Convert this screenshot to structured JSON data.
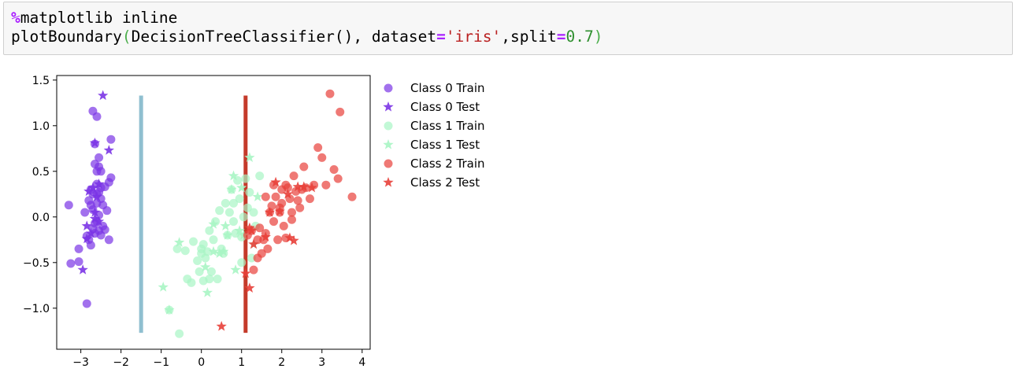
{
  "code": {
    "magic_pct": "%",
    "magic_rest": "matplotlib inline",
    "func": "plotBoundary",
    "open_paren": "(",
    "arg1": "DecisionTreeClassifier(), dataset",
    "eq1": "=",
    "str1": "'iris'",
    "arg2": ",split",
    "eq2": "=",
    "num1": "0.7",
    "close_paren": ")"
  },
  "colors": {
    "class0": "#7b34e6",
    "class1": "#a8f5c4",
    "class2": "#e8403a",
    "boundary_blue": "#8fbfd0",
    "boundary_red": "#c43a2a"
  },
  "chart_data": {
    "type": "scatter",
    "xlim": [
      -3.6,
      4.2
    ],
    "ylim": [
      -1.45,
      1.55
    ],
    "xticks": [
      -3,
      -2,
      -1,
      0,
      1,
      2,
      3,
      4
    ],
    "xtick_labels": [
      "−3",
      "−2",
      "−1",
      "0",
      "1",
      "2",
      "3",
      "4"
    ],
    "yticks": [
      1.5,
      1.0,
      0.5,
      0.0,
      -0.5,
      -1.0
    ],
    "ytick_labels": [
      "1.5",
      "1.0",
      "0.5",
      "0.0",
      "−0.5",
      "−1.0"
    ],
    "grid": false,
    "legend_placement": "outside-upper-right",
    "legend": [
      {
        "label": "Class 0 Train",
        "marker": "circle",
        "color": "#7b34e6"
      },
      {
        "label": "Class 0 Test",
        "marker": "star",
        "color": "#7b34e6"
      },
      {
        "label": "Class 1 Train",
        "marker": "circle",
        "color": "#a8f5c4"
      },
      {
        "label": "Class 1 Test",
        "marker": "star",
        "color": "#a8f5c4"
      },
      {
        "label": "Class 2 Train",
        "marker": "circle",
        "color": "#e8403a"
      },
      {
        "label": "Class 2 Test",
        "marker": "star",
        "color": "#e8403a"
      }
    ],
    "boundaries": [
      {
        "x": -1.5,
        "y": [
          -1.27,
          1.33
        ],
        "color": "#8fbfd0"
      },
      {
        "x": 1.1,
        "y": [
          -1.27,
          1.33
        ],
        "color": "#c43a2a"
      }
    ],
    "series": [
      {
        "name": "Class 0 Train",
        "marker": "circle",
        "color": "#7b34e6",
        "points": [
          [
            -3.3,
            0.13
          ],
          [
            -3.25,
            -0.51
          ],
          [
            -3.05,
            -0.35
          ],
          [
            -3.05,
            -0.49
          ],
          [
            -2.9,
            0.05
          ],
          [
            -2.85,
            -0.95
          ],
          [
            -2.85,
            -0.21
          ],
          [
            -2.8,
            -0.25
          ],
          [
            -2.75,
            -0.31
          ],
          [
            -2.75,
            0.13
          ],
          [
            -2.75,
            0.3
          ],
          [
            -2.7,
            1.16
          ],
          [
            -2.7,
            0.25
          ],
          [
            -2.65,
            -0.18
          ],
          [
            -2.65,
            0.58
          ],
          [
            -2.65,
            0.8
          ],
          [
            -2.6,
            1.1
          ],
          [
            -2.6,
            0.5
          ],
          [
            -2.6,
            0.36
          ],
          [
            -2.55,
            0.55
          ],
          [
            -2.55,
            0.65
          ],
          [
            -2.55,
            -0.15
          ],
          [
            -2.55,
            0.02
          ],
          [
            -2.5,
            0.2
          ],
          [
            -2.5,
            0.5
          ],
          [
            -2.45,
            0.13
          ],
          [
            -2.45,
            -0.1
          ],
          [
            -2.4,
            -0.14
          ],
          [
            -2.4,
            0.33
          ],
          [
            -2.35,
            0.07
          ],
          [
            -2.3,
            0.38
          ],
          [
            -2.3,
            -0.25
          ],
          [
            -2.25,
            0.43
          ],
          [
            -2.25,
            0.85
          ],
          [
            -2.6,
            0.25
          ],
          [
            -2.6,
            -0.05
          ],
          [
            -2.7,
            0.08
          ],
          [
            -2.5,
            -0.2
          ],
          [
            -2.8,
            0.18
          ],
          [
            -2.6,
            0.15
          ],
          [
            -2.65,
            -0.07
          ],
          [
            -2.55,
            0.27
          ],
          [
            -2.7,
            -0.13
          ],
          [
            -2.5,
            0.32
          ]
        ]
      },
      {
        "name": "Class 0 Test",
        "marker": "star",
        "color": "#7b34e6",
        "points": [
          [
            -2.95,
            -0.58
          ],
          [
            -2.85,
            -0.1
          ],
          [
            -2.8,
            0.28
          ],
          [
            -2.7,
            0.32
          ],
          [
            -2.65,
            0.81
          ],
          [
            -2.6,
            0.22
          ],
          [
            -2.55,
            -0.05
          ],
          [
            -2.45,
            1.33
          ],
          [
            -2.3,
            0.73
          ],
          [
            -2.85,
            -0.24
          ],
          [
            -2.75,
            -0.18
          ],
          [
            -2.65,
            0.05
          ],
          [
            -2.55,
            0.36
          ],
          [
            -2.65,
            -0.02
          ]
        ]
      },
      {
        "name": "Class 1 Train",
        "marker": "circle",
        "color": "#a8f5c4",
        "points": [
          [
            -0.55,
            -1.28
          ],
          [
            -0.8,
            -1.02
          ],
          [
            -0.4,
            -0.37
          ],
          [
            -0.35,
            -0.68
          ],
          [
            -0.25,
            -0.72
          ],
          [
            -0.2,
            -0.27
          ],
          [
            -0.1,
            -0.48
          ],
          [
            -0.05,
            -0.6
          ],
          [
            0.0,
            -0.35
          ],
          [
            0.05,
            -0.3
          ],
          [
            0.05,
            -0.7
          ],
          [
            0.1,
            -0.45
          ],
          [
            0.15,
            -0.38
          ],
          [
            0.2,
            -0.68
          ],
          [
            0.25,
            -0.6
          ],
          [
            0.3,
            -0.25
          ],
          [
            0.35,
            -0.05
          ],
          [
            0.4,
            -0.68
          ],
          [
            0.45,
            0.07
          ],
          [
            0.5,
            -0.35
          ],
          [
            0.55,
            -0.4
          ],
          [
            0.6,
            0.15
          ],
          [
            0.65,
            -0.2
          ],
          [
            0.7,
            0.05
          ],
          [
            0.75,
            0.3
          ],
          [
            0.8,
            -0.05
          ],
          [
            0.85,
            -0.18
          ],
          [
            0.9,
            0.4
          ],
          [
            0.95,
            0.2
          ],
          [
            1.0,
            -0.22
          ],
          [
            1.0,
            -0.5
          ],
          [
            1.05,
            0.0
          ],
          [
            1.1,
            0.42
          ],
          [
            1.15,
            0.1
          ],
          [
            1.2,
            0.27
          ],
          [
            1.25,
            -0.45
          ],
          [
            1.3,
            0.05
          ],
          [
            1.35,
            -0.1
          ],
          [
            1.45,
            0.45
          ],
          [
            -0.6,
            -0.35
          ],
          [
            0.2,
            -0.15
          ],
          [
            0.0,
            -0.4
          ],
          [
            0.8,
            0.15
          ]
        ]
      },
      {
        "name": "Class 1 Test",
        "marker": "star",
        "color": "#a8f5c4",
        "points": [
          [
            -0.95,
            -0.77
          ],
          [
            -0.8,
            -1.02
          ],
          [
            -0.55,
            -0.28
          ],
          [
            0.1,
            -0.55
          ],
          [
            0.15,
            -0.83
          ],
          [
            0.3,
            -0.38
          ],
          [
            0.3,
            -0.08
          ],
          [
            0.45,
            -0.4
          ],
          [
            0.55,
            -0.38
          ],
          [
            0.65,
            -0.2
          ],
          [
            0.75,
            0.3
          ],
          [
            0.8,
            0.45
          ],
          [
            0.85,
            -0.58
          ],
          [
            1.0,
            0.32
          ],
          [
            1.05,
            -0.2
          ],
          [
            1.2,
            0.65
          ],
          [
            1.3,
            -0.3
          ],
          [
            1.4,
            0.22
          ],
          [
            0.95,
            -0.15
          ],
          [
            0.6,
            -0.1
          ]
        ]
      },
      {
        "name": "Class 2 Train",
        "marker": "circle",
        "color": "#e8403a",
        "points": [
          [
            1.15,
            -0.2
          ],
          [
            1.25,
            -0.15
          ],
          [
            1.3,
            -0.58
          ],
          [
            1.4,
            -0.45
          ],
          [
            1.45,
            -0.12
          ],
          [
            1.5,
            -0.4
          ],
          [
            1.55,
            -0.25
          ],
          [
            1.6,
            0.22
          ],
          [
            1.65,
            -0.35
          ],
          [
            1.7,
            0.05
          ],
          [
            1.75,
            0.12
          ],
          [
            1.8,
            -0.05
          ],
          [
            1.85,
            0.22
          ],
          [
            1.9,
            -0.25
          ],
          [
            1.95,
            0.1
          ],
          [
            2.0,
            0.3
          ],
          [
            2.05,
            -0.1
          ],
          [
            2.1,
            -0.23
          ],
          [
            2.15,
            0.32
          ],
          [
            2.2,
            0.2
          ],
          [
            2.25,
            0.05
          ],
          [
            2.3,
            0.45
          ],
          [
            2.35,
            0.28
          ],
          [
            2.4,
            0.18
          ],
          [
            2.45,
            0.1
          ],
          [
            2.5,
            0.3
          ],
          [
            2.55,
            0.55
          ],
          [
            2.6,
            0.32
          ],
          [
            2.7,
            0.2
          ],
          [
            2.8,
            0.35
          ],
          [
            2.9,
            0.76
          ],
          [
            3.0,
            0.65
          ],
          [
            3.1,
            0.35
          ],
          [
            3.2,
            1.35
          ],
          [
            3.3,
            0.52
          ],
          [
            3.4,
            0.42
          ],
          [
            3.45,
            1.15
          ],
          [
            3.75,
            0.22
          ],
          [
            2.1,
            0.35
          ],
          [
            1.8,
            0.35
          ],
          [
            1.95,
            0.05
          ],
          [
            2.25,
            -0.03
          ],
          [
            1.4,
            -0.25
          ],
          [
            1.6,
            -0.18
          ],
          [
            2.0,
            0.15
          ]
        ]
      },
      {
        "name": "Class 2 Test",
        "marker": "star",
        "color": "#e8403a",
        "points": [
          [
            0.5,
            -1.2
          ],
          [
            1.1,
            -0.62
          ],
          [
            1.2,
            -0.78
          ],
          [
            1.25,
            -0.15
          ],
          [
            1.3,
            -0.3
          ],
          [
            1.6,
            -0.22
          ],
          [
            1.7,
            0.05
          ],
          [
            1.85,
            0.38
          ],
          [
            1.95,
            0.06
          ],
          [
            2.2,
            -0.23
          ],
          [
            2.3,
            -0.26
          ],
          [
            2.4,
            0.33
          ],
          [
            2.55,
            0.33
          ],
          [
            2.75,
            0.32
          ],
          [
            1.2,
            -0.12
          ],
          [
            2.15,
            0.25
          ]
        ]
      }
    ]
  }
}
